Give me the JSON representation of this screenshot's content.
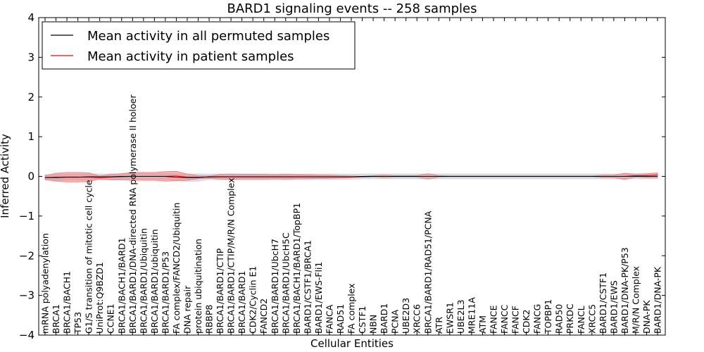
{
  "chart_data": {
    "type": "line",
    "title": "BARD1 signaling events -- 258 samples",
    "xlabel": "Cellular Entities",
    "ylabel": "Inferred Activity",
    "ylim": [
      -4,
      4
    ],
    "yticks": [
      -4,
      -3,
      -2,
      -1,
      0,
      1,
      2,
      3,
      4
    ],
    "ytick_labels": [
      "−4",
      "−3",
      "−2",
      "−1",
      "0",
      "1",
      "2",
      "3",
      "4"
    ],
    "grid": false,
    "legend": "top-left",
    "categories": [
      "mRNA polyadenylation",
      "BRCA1",
      "BRCA1/BACH1",
      "TP53",
      "G1/S transition of mitotic cell cycle",
      "UniProt:Q9BZD1",
      "CCNE1",
      "BRCA1/BACH1/BARD1",
      "BRCA1/BARD1/DNA-directed RNA polymerase II holoer",
      "BRCA1/BARD1/Ubiquitin",
      "BRCA1/BARD1/ubiquitin",
      "BRCA1/BARD1/P53",
      "FA complex/FANCD2/Ubiquitin",
      "DNA repair",
      "protein ubiquitination",
      "RBBP8",
      "BRCA1/BARD1/CTIP",
      "BRCA1/BARD1/CTIP/M/R/N Complex",
      "BRCA1/BARD1",
      "CDK2/Cyclin E1",
      "FANCD2",
      "BRCA1/BARD1/UbcH7",
      "BRCA1/BARD1/UbcH5C",
      "BRCA1/BACH1/BARD1/TopBP1",
      "BARD1/CSTF1/BRCA1",
      "BARD1/EWS-Fli1",
      "FANCA",
      "RAD51",
      "FA complex",
      "CSTF1",
      "NBN",
      "BARD1",
      "PCNA",
      "UBE2D3",
      "XRCC6",
      "BRCA1/BARD1/RAD51/PCNA",
      "ATR",
      "EWSR1",
      "UBE2L3",
      "MRE11A",
      "ATM",
      "FANCE",
      "FANCC",
      "FANCF",
      "CDK2",
      "FANCG",
      "TOPBP1",
      "RAD50",
      "PRKDC",
      "FANCL",
      "XRCC5",
      "BARD1/CSTF1",
      "BARD1/EWS",
      "BARD1/DNA-PK/P53",
      "M/R/N Complex",
      "DNA-PK",
      "BARD1/DNA-PK"
    ],
    "series": [
      {
        "name": "Mean activity in all permuted samples",
        "color": "#000000",
        "values": [
          -0.03,
          -0.03,
          -0.02,
          -0.02,
          -0.01,
          -0.01,
          -0.01,
          0.0,
          0.0,
          0.0,
          0.0,
          0.0,
          -0.02,
          -0.03,
          -0.03,
          -0.01,
          -0.01,
          -0.01,
          -0.01,
          -0.01,
          -0.01,
          -0.01,
          -0.01,
          -0.01,
          -0.01,
          -0.01,
          -0.01,
          -0.01,
          -0.01,
          0.0,
          0.0,
          0.0,
          0.0,
          0.0,
          0.0,
          0.0,
          0.0,
          0.0,
          0.0,
          0.0,
          0.0,
          0.0,
          0.0,
          0.0,
          0.0,
          0.0,
          0.0,
          0.0,
          0.0,
          0.0,
          0.0,
          0.0,
          0.0,
          0.0,
          0.0,
          0.0,
          0.0
        ],
        "band": [
          0.07,
          0.07,
          0.07,
          0.07,
          0.07,
          0.07,
          0.07,
          0.07,
          0.07,
          0.07,
          0.07,
          0.07,
          0.08,
          0.09,
          0.09,
          0.07,
          0.07,
          0.07,
          0.07,
          0.07,
          0.07,
          0.07,
          0.07,
          0.07,
          0.07,
          0.07,
          0.07,
          0.07,
          0.06,
          0.06,
          0.06,
          0.06,
          0.06,
          0.06,
          0.06,
          0.06,
          0.06,
          0.06,
          0.06,
          0.06,
          0.06,
          0.06,
          0.06,
          0.06,
          0.06,
          0.06,
          0.06,
          0.06,
          0.06,
          0.06,
          0.06,
          0.06,
          0.06,
          0.06,
          0.06,
          0.06,
          0.06
        ],
        "band_color": "#c8cbe0"
      },
      {
        "name": "Mean activity in patient samples",
        "color": "#ff0000",
        "values": [
          -0.03,
          -0.02,
          -0.02,
          -0.02,
          -0.02,
          -0.03,
          -0.02,
          -0.01,
          0.0,
          0.0,
          0.0,
          0.0,
          0.01,
          -0.02,
          -0.02,
          -0.02,
          -0.01,
          -0.01,
          -0.01,
          -0.01,
          -0.01,
          -0.01,
          -0.01,
          -0.01,
          -0.01,
          -0.01,
          -0.01,
          -0.01,
          -0.01,
          -0.01,
          0.0,
          0.0,
          0.0,
          0.0,
          0.0,
          0.0,
          0.0,
          0.0,
          0.0,
          0.0,
          0.0,
          0.0,
          0.0,
          0.0,
          0.0,
          0.0,
          0.0,
          0.0,
          0.0,
          0.0,
          0.0,
          0.0,
          0.0,
          0.0,
          0.02,
          0.02,
          0.03
        ],
        "band": [
          0.05,
          0.1,
          0.12,
          0.12,
          0.11,
          0.04,
          0.07,
          0.08,
          0.1,
          0.1,
          0.1,
          0.12,
          0.12,
          0.08,
          0.04,
          0.03,
          0.06,
          0.07,
          0.06,
          0.06,
          0.06,
          0.05,
          0.06,
          0.05,
          0.05,
          0.04,
          0.04,
          0.03,
          0.02,
          0.01,
          0.02,
          0.03,
          0.02,
          0.02,
          0.02,
          0.07,
          0.02,
          0.01,
          0.01,
          0.01,
          0.01,
          0.01,
          0.01,
          0.01,
          0.01,
          0.01,
          0.01,
          0.01,
          0.01,
          0.01,
          0.01,
          0.03,
          0.03,
          0.08,
          0.04,
          0.05,
          0.06
        ],
        "band_color": "#f08080"
      }
    ]
  }
}
